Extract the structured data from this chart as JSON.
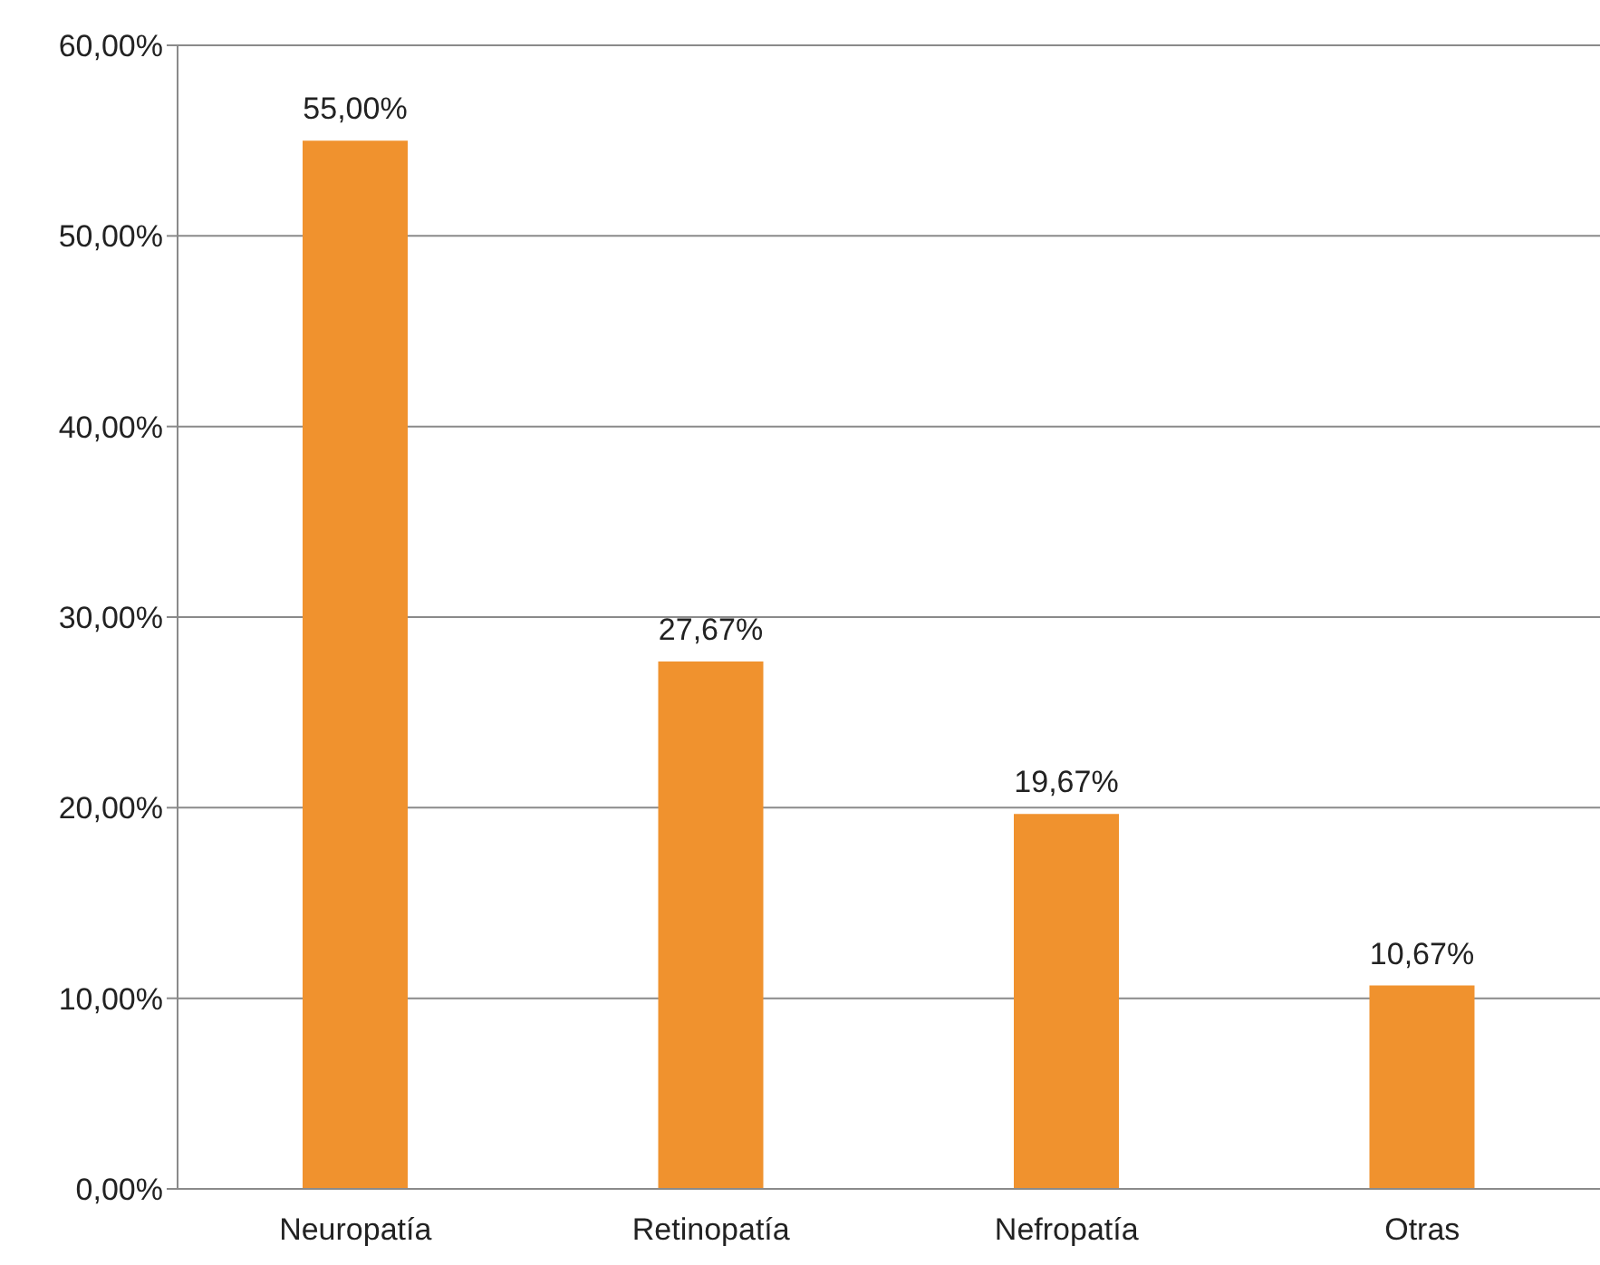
{
  "chart_data": {
    "type": "bar",
    "categories": [
      "Neuropatía",
      "Retinopatía",
      "Nefropatía",
      "Otras"
    ],
    "values": [
      55.0,
      27.67,
      19.67,
      10.67
    ],
    "value_labels": [
      "55,00%",
      "27,67%",
      "19,67%",
      "10,67%"
    ],
    "color": "#f0922e",
    "ylim": [
      0,
      60
    ],
    "yticks": [
      {
        "value": 0,
        "label": "0,00%"
      },
      {
        "value": 10,
        "label": "10,00%"
      },
      {
        "value": 20,
        "label": "20,00%"
      },
      {
        "value": 30,
        "label": "30,00%"
      },
      {
        "value": 40,
        "label": "40,00%"
      },
      {
        "value": 50,
        "label": "50,00%"
      },
      {
        "value": 60,
        "label": "60,00%"
      }
    ],
    "grid": "y",
    "legend": false
  }
}
